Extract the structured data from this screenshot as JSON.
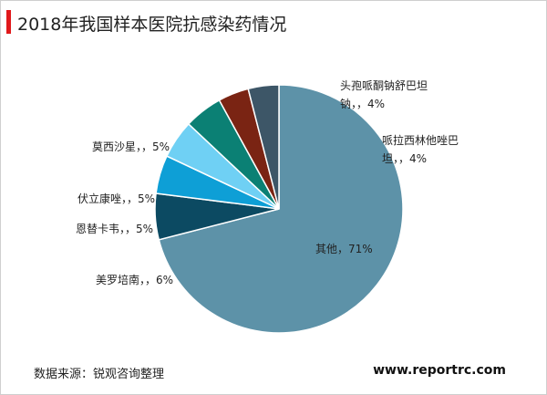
{
  "chart_data": {
    "type": "pie",
    "title": "2018年我国样本医院抗感染药情况",
    "categories": [
      "其他",
      "美罗培南",
      "恩替卡韦",
      "伏立康唑",
      "莫西沙星",
      "哌拉西林他唑巴坦",
      "头孢哌酮钠舒巴坦钠"
    ],
    "values": [
      71,
      6,
      5,
      5,
      5,
      4,
      4
    ],
    "value_labels": [
      "，71%",
      "，，6%",
      "，，5%",
      "，，5%",
      "，，5%",
      "，，4%",
      "，，4%"
    ],
    "colors": [
      "#5d92a8",
      "#0c4a62",
      "#0e9fd6",
      "#6fd0f4",
      "#0b8074",
      "#7a2413",
      "#3d5667"
    ]
  },
  "footer": {
    "source": "数据来源：锐观咨询整理",
    "website": "www.reportrc.com"
  }
}
